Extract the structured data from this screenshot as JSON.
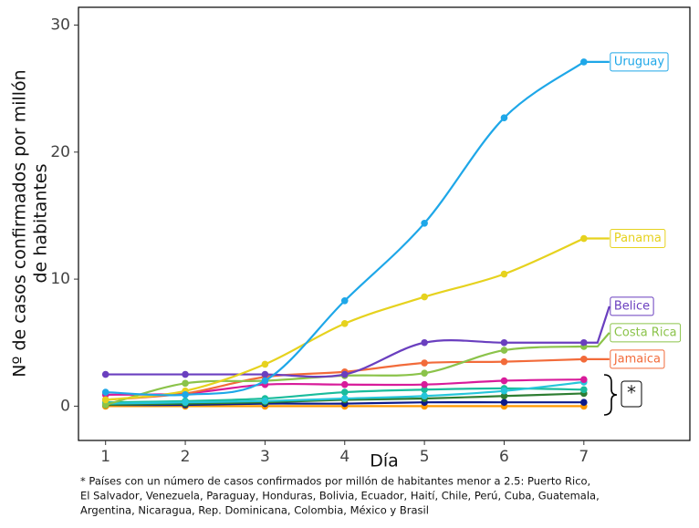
{
  "chart_data": {
    "type": "line",
    "xlabel": "Día",
    "ylabel": [
      "Nº de casos confirmados por millón",
      "de habitantes"
    ],
    "x": [
      1,
      2,
      3,
      4,
      5,
      6,
      7
    ],
    "xlim": [
      0.66,
      8.33
    ],
    "xticks": [
      1,
      2,
      3,
      4,
      5,
      6,
      7
    ],
    "ylim": [
      -2.7,
      31.4
    ],
    "yticks": [
      0,
      10,
      20,
      30
    ],
    "grid": false,
    "series": [
      {
        "name": "Uruguay",
        "color": "#1ea7e8",
        "values": [
          1.1,
          0.9,
          2.0,
          8.3,
          14.4,
          22.7,
          27.1
        ]
      },
      {
        "name": "Panama",
        "color": "#e6d21e",
        "values": [
          0.5,
          1.2,
          3.3,
          6.5,
          8.6,
          10.4,
          13.2
        ]
      },
      {
        "name": "Belice",
        "color": "#6a3fbf",
        "values": [
          2.5,
          2.5,
          2.5,
          2.5,
          5.0,
          5.0,
          5.0
        ]
      },
      {
        "name": "Costa Rica",
        "color": "#8bc34a",
        "values": [
          0.1,
          1.8,
          2.0,
          2.4,
          2.6,
          4.4,
          4.7
        ]
      },
      {
        "name": "Jamaica",
        "color": "#f26b3a",
        "values": [
          0.5,
          1.0,
          2.3,
          2.7,
          3.4,
          3.5,
          3.7
        ]
      },
      {
        "color": "#d81b9a",
        "values": [
          0.9,
          1.0,
          1.7,
          1.7,
          1.7,
          2.0,
          2.1
        ]
      },
      {
        "color": "#26c6da",
        "values": [
          0.2,
          0.3,
          0.4,
          0.6,
          0.8,
          1.2,
          1.9
        ]
      },
      {
        "color": "#1abc9c",
        "values": [
          0.3,
          0.4,
          0.6,
          1.1,
          1.3,
          1.4,
          1.3
        ]
      },
      {
        "color": "#2e7d32",
        "values": [
          0.1,
          0.2,
          0.3,
          0.5,
          0.6,
          0.8,
          1.0
        ]
      },
      {
        "color": "#0d1b8c",
        "values": [
          0.1,
          0.1,
          0.2,
          0.2,
          0.3,
          0.3,
          0.3
        ]
      },
      {
        "color": "#ff9800",
        "values": [
          0,
          0,
          0,
          0,
          0,
          0,
          0
        ]
      }
    ],
    "group_marker": "*",
    "footnote": [
      "* Países con un número de casos confirmados por millón de habitantes menor a 2.5: Puerto Rico,",
      "El Salvador, Venezuela, Paraguay, Honduras, Bolivia, Ecuador, Haití, Chile, Perú, Cuba, Guatemala,",
      "Argentina, Nicaragua, Rep. Dominicana, Colombia, México y Brasil"
    ]
  }
}
